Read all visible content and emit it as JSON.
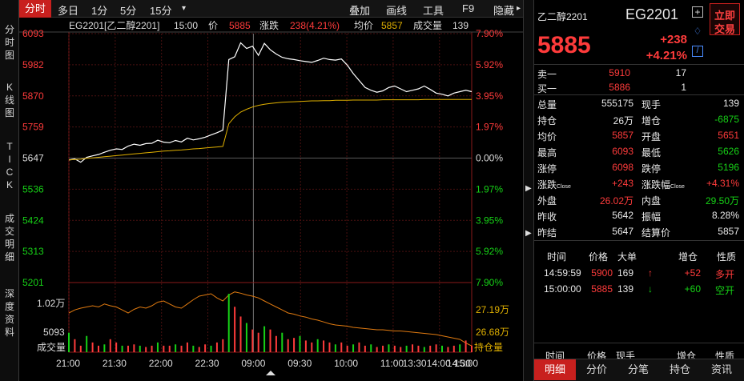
{
  "tabs": {
    "intraday": "分时",
    "multi_day": "多日",
    "m1": "1分",
    "m5": "5分",
    "m15": "15分",
    "dropdown": "▾",
    "overlay": "叠加",
    "draw": "画线",
    "tools": "工具",
    "f9": "F9",
    "hide": "隐藏"
  },
  "sidebar": {
    "intraday": [
      "分",
      "时",
      "图"
    ],
    "kline": [
      "K",
      "线",
      "图"
    ],
    "tick": [
      "T",
      "I",
      "C",
      "K"
    ],
    "trades": [
      "成",
      "交",
      "明",
      "细"
    ],
    "depth": [
      "深",
      "度",
      "资",
      "料"
    ]
  },
  "chart_header": {
    "symbol": "EG2201[乙二醇2201]",
    "time": "15:00",
    "price_label": "价",
    "price": "5885",
    "change_label": "涨跌",
    "change": "238(4.21%)",
    "avg_label": "均价",
    "avg": "5857",
    "volume_label": "成交量",
    "volume": "139"
  },
  "chart_data": {
    "type": "line",
    "x_ticks": [
      "21:00",
      "21:30",
      "22:00",
      "22:30",
      "09:00",
      "09:30",
      "10:00",
      "11:00",
      "13:30",
      "14:00",
      "14:30",
      "15:00"
    ],
    "price_ticks": [
      "6093",
      "5982",
      "5870",
      "5759",
      "5647",
      "5536",
      "5424",
      "5313",
      "5201"
    ],
    "pct_ticks": [
      "7.90%",
      "5.92%",
      "3.95%",
      "1.97%",
      "0.00%",
      "1.97%",
      "3.95%",
      "5.92%",
      "7.90%"
    ],
    "ylim": [
      5201,
      6093
    ],
    "prev_settle": 5647,
    "price_series": [
      5640,
      5644,
      5632,
      5650,
      5655,
      5660,
      5668,
      5675,
      5680,
      5678,
      5690,
      5697,
      5693,
      5699,
      5700,
      5711,
      5704,
      5702,
      5710,
      5705,
      5718,
      5712,
      5716,
      5722,
      5730,
      5738,
      5747,
      6000,
      6010,
      6060,
      6040,
      6048,
      6015,
      6058,
      6035,
      6020,
      6008,
      6003,
      6000,
      5996,
      5993,
      5990,
      5997,
      6005,
      6000,
      5998,
      6002,
      5980,
      5950,
      5925,
      5900,
      5890,
      5883,
      5888,
      5900,
      5905,
      5895,
      5885,
      5890,
      5895,
      5905,
      5893,
      5880,
      5876,
      5870,
      5880,
      5885,
      5890,
      5885
    ],
    "avg_series": [
      5640,
      5642,
      5643,
      5646,
      5648,
      5650,
      5652,
      5654,
      5656,
      5658,
      5660,
      5662,
      5664,
      5666,
      5668,
      5670,
      5672,
      5673,
      5675,
      5676,
      5678,
      5680,
      5681,
      5683,
      5685,
      5687,
      5689,
      5770,
      5795,
      5812,
      5822,
      5830,
      5836,
      5840,
      5843,
      5845,
      5847,
      5848,
      5849,
      5850,
      5851,
      5852,
      5852,
      5853,
      5853,
      5854,
      5854,
      5854,
      5855,
      5855,
      5855,
      5855,
      5855,
      5856,
      5856,
      5856,
      5856,
      5856,
      5856,
      5856,
      5857,
      5857,
      5857,
      5857,
      5857,
      5857,
      5857,
      5857,
      5857
    ],
    "oi_ticks": [
      "1.02万",
      "27.19万",
      "5093",
      "26.68万"
    ],
    "oi_labels": [
      "成交量",
      "持仓量"
    ],
    "oi_series": [
      27.0,
      27.05,
      27.08,
      27.1,
      27.12,
      27.1,
      27.15,
      27.12,
      27.1,
      27.05,
      27.0,
      27.06,
      27.1,
      27.08,
      27.12,
      27.18,
      27.2,
      27.15,
      27.1,
      27.08,
      27.15,
      27.22,
      27.28,
      27.3,
      27.32,
      27.25,
      27.2,
      27.3,
      27.35,
      27.33,
      27.3,
      27.28,
      27.25,
      27.2,
      27.15,
      27.1,
      27.05,
      27.0,
      26.98,
      26.95,
      26.93,
      26.9,
      26.88,
      26.85,
      26.82,
      26.8,
      26.79,
      26.78,
      26.76,
      26.75,
      26.74,
      26.73,
      26.72,
      26.72,
      26.71,
      26.7,
      26.7,
      26.69,
      26.68,
      26.67,
      26.66,
      26.65,
      26.64,
      26.62,
      26.6,
      26.58,
      26.56,
      26.5,
      26.45
    ],
    "vol_series": [
      0.3,
      0.2,
      0.1,
      0.25,
      0.15,
      0.1,
      0.12,
      0.2,
      0.15,
      0.1,
      0.1,
      0.12,
      0.1,
      0.08,
      0.1,
      0.15,
      0.1,
      0.1,
      0.12,
      0.1,
      0.15,
      0.1,
      0.08,
      0.12,
      0.1,
      0.15,
      0.2,
      0.9,
      0.7,
      0.55,
      0.45,
      0.35,
      0.3,
      0.4,
      0.35,
      0.25,
      0.3,
      0.2,
      0.22,
      0.25,
      0.18,
      0.15,
      0.2,
      0.18,
      0.15,
      0.12,
      0.15,
      0.1,
      0.12,
      0.15,
      0.1,
      0.12,
      0.08,
      0.1,
      0.12,
      0.1,
      0.08,
      0.1,
      0.12,
      0.1,
      0.08,
      0.1,
      0.12,
      0.1,
      0.08,
      0.1,
      0.12,
      0.18,
      0.1
    ]
  },
  "quote": {
    "name": "乙二醇2201",
    "code": "EG2201",
    "price": "5885",
    "change": "+238",
    "change_pct": "+4.21%",
    "quick_trade": [
      "立即",
      "交易"
    ]
  },
  "book": [
    {
      "label": "卖一",
      "price": "5910",
      "qty": "17"
    },
    {
      "label": "买一",
      "price": "5886",
      "qty": "1"
    }
  ],
  "stats": [
    {
      "l1": "总量",
      "v1": "555175",
      "c1": "white",
      "l2": "现手",
      "v2": "139",
      "c2": "white"
    },
    {
      "l1": "持仓",
      "v1": "26万",
      "c1": "white",
      "l2": "增仓",
      "v2": "-6875",
      "c2": "green"
    },
    {
      "l1": "均价",
      "v1": "5857",
      "c1": "red",
      "l2": "开盘",
      "v2": "5651",
      "c2": "red"
    },
    {
      "l1": "最高",
      "v1": "6093",
      "c1": "red",
      "l2": "最低",
      "v2": "5626",
      "c2": "green"
    },
    {
      "l1": "涨停",
      "v1": "6098",
      "c1": "red",
      "l2": "跌停",
      "v2": "5196",
      "c2": "green"
    },
    {
      "l1": "涨跌Close",
      "v1": "+243",
      "c1": "red",
      "l2": "涨跌幅Close",
      "v2": "+4.31%",
      "c2": "red"
    },
    {
      "l1": "外盘",
      "v1": "26.02万",
      "c1": "red",
      "l2": "内盘",
      "v2": "29.50万",
      "c2": "green"
    },
    {
      "l1": "昨收",
      "v1": "5642",
      "c1": "white",
      "l2": "振幅",
      "v2": "8.28%",
      "c2": "white"
    },
    {
      "l1": "昨结",
      "v1": "5647",
      "c1": "white",
      "l2": "结算价",
      "v2": "5857",
      "c2": "white"
    }
  ],
  "trades_header": [
    "时间",
    "价格",
    "大单",
    "增仓",
    "性质"
  ],
  "trades": [
    {
      "time": "14:59:59",
      "price": "5900",
      "qty": "169",
      "arrow": "↑",
      "oi": "+52",
      "nature": "多开",
      "nature_color": "red",
      "arrow_color": "red"
    },
    {
      "time": "15:00:00",
      "price": "5885",
      "qty": "139",
      "arrow": "↓",
      "oi": "+60",
      "nature": "空开",
      "nature_color": "green",
      "arrow_color": "green"
    }
  ],
  "trades_header2": [
    "时间",
    "价格",
    "现手",
    "增仓",
    "性质"
  ],
  "bottom_tabs": [
    "明细",
    "分价",
    "分笔",
    "持仓",
    "资讯"
  ]
}
